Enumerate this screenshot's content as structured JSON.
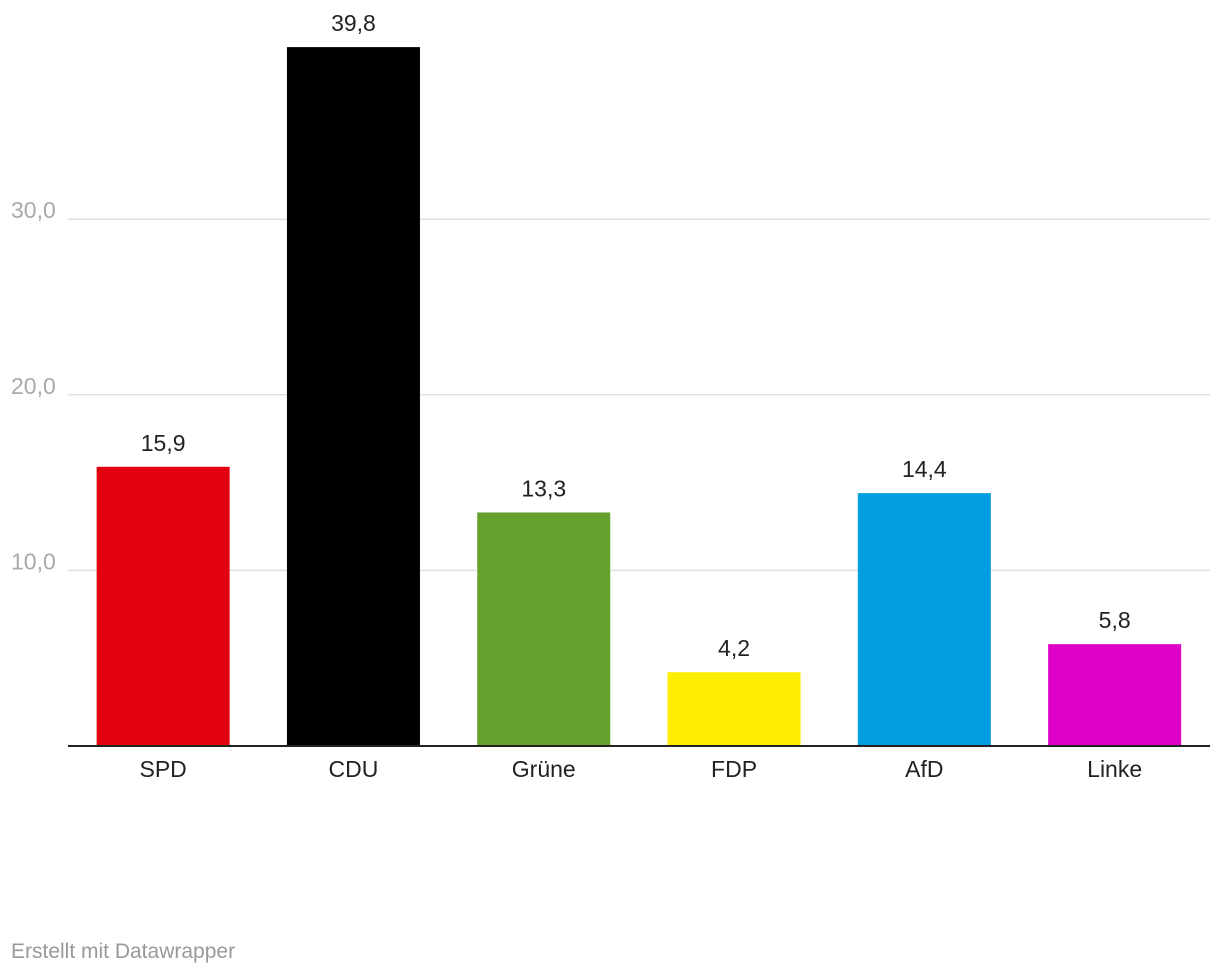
{
  "chart_data": {
    "type": "bar",
    "categories": [
      "SPD",
      "CDU",
      "Grüne",
      "FDP",
      "AfD",
      "Linke"
    ],
    "values": [
      15.9,
      39.8,
      13.3,
      4.2,
      14.4,
      5.8
    ],
    "value_labels": [
      "15,9",
      "39,8",
      "13,3",
      "4,2",
      "14,4",
      "5,8"
    ],
    "colors": [
      "#e3000f",
      "#000000",
      "#64a12d",
      "#ffed00",
      "#009ee0",
      "#df00c8"
    ],
    "y_ticks": [
      {
        "value": 10,
        "label": "10,0"
      },
      {
        "value": 20,
        "label": "20,0"
      },
      {
        "value": 30,
        "label": "30,0"
      }
    ],
    "ylim": [
      0,
      40
    ],
    "grid": true,
    "title": "",
    "xlabel": "",
    "ylabel": ""
  },
  "footer": {
    "credit": "Erstellt mit Datawrapper"
  }
}
